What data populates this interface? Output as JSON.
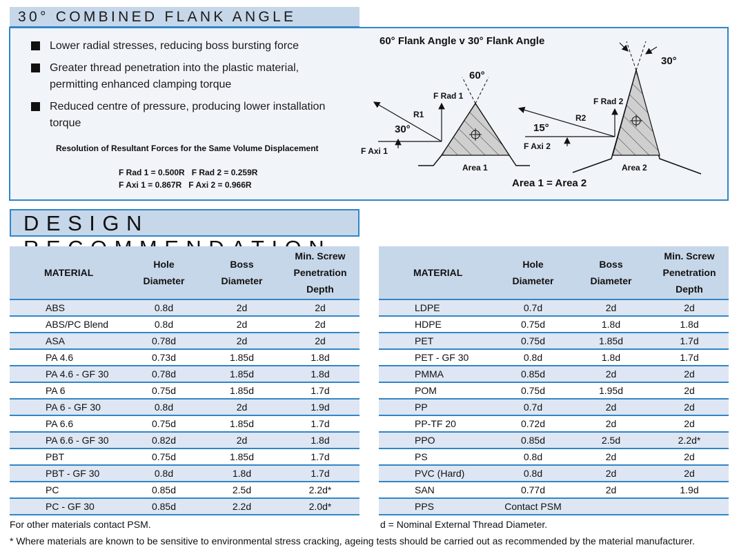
{
  "header": {
    "title": "30° COMBINED FLANK ANGLE"
  },
  "bullets": [
    [
      "Lower radial stresses, reducing boss bursting force"
    ],
    [
      "Greater thread penetration into the plastic material,",
      "permitting enhanced clamping torque"
    ],
    [
      "Reduced centre of pressure, producing lower installation",
      "torque"
    ]
  ],
  "resolution": {
    "title": "Resolution of Resultant Forces for the Same Volume Displacement",
    "line1": "F Rad 1 = 0.500R   F Rad 2 = 0.259R",
    "line2": "F Axi 1 = 0.867R   F Axi 2 = 0.966R"
  },
  "diagram": {
    "title": "60° Flank Angle v 30° Flank Angle",
    "angle_60": "60°",
    "angle_30_left": "30°",
    "angle_15": "15°",
    "angle_30_right": "30°",
    "f_rad_1": "F Rad 1",
    "f_rad_2": "F Rad 2",
    "r1": "R1",
    "r2": "R2",
    "f_axi_1": "F Axi 1",
    "f_axi_2": "F Axi 2",
    "area_1": "Area 1",
    "area_2": "Area  2",
    "equality": "Area 1 = Area 2"
  },
  "design_header": {
    "title": "DESIGN RECOMMENDATION"
  },
  "columns": {
    "material": "MATERIAL",
    "hole": [
      "Hole",
      "Diameter"
    ],
    "boss": [
      "Boss",
      "Diameter"
    ],
    "depth": [
      "Min. Screw",
      "Penetration",
      "Depth"
    ]
  },
  "table_left": [
    [
      "ABS",
      "0.8d",
      "2d",
      "2d"
    ],
    [
      "ABS/PC Blend",
      "0.8d",
      "2d",
      "2d"
    ],
    [
      "ASA",
      "0.78d",
      "2d",
      "2d"
    ],
    [
      "PA 4.6",
      "0.73d",
      "1.85d",
      "1.8d"
    ],
    [
      "PA 4.6 - GF 30",
      "0.78d",
      "1.85d",
      "1.8d"
    ],
    [
      "PA 6",
      "0.75d",
      "1.85d",
      "1.7d"
    ],
    [
      "PA 6 - GF 30",
      "0.8d",
      "2d",
      "1.9d"
    ],
    [
      "PA 6.6",
      "0.75d",
      "1.85d",
      "1.7d"
    ],
    [
      "PA 6.6 - GF 30",
      "0.82d",
      "2d",
      "1.8d"
    ],
    [
      "PBT",
      "0.75d",
      "1.85d",
      "1.7d"
    ],
    [
      "PBT - GF 30",
      "0.8d",
      "1.8d",
      "1.7d"
    ],
    [
      "PC",
      "0.85d",
      "2.5d",
      "2.2d*"
    ],
    [
      "PC - GF 30",
      "0.85d",
      "2.2d",
      "2.0d*"
    ]
  ],
  "table_right": [
    [
      "LDPE",
      "0.7d",
      "2d",
      "2d"
    ],
    [
      "HDPE",
      "0.75d",
      "1.8d",
      "1.8d"
    ],
    [
      "PET",
      "0.75d",
      "1.85d",
      "1.7d"
    ],
    [
      "PET - GF 30",
      "0.8d",
      "1.8d",
      "1.7d"
    ],
    [
      "PMMA",
      "0.85d",
      "2d",
      "2d"
    ],
    [
      "POM",
      "0.75d",
      "1.95d",
      "2d"
    ],
    [
      "PP",
      "0.7d",
      "2d",
      "2d"
    ],
    [
      "PP-TF 20",
      "0.72d",
      "2d",
      "2d"
    ],
    [
      "PPO",
      "0.85d",
      "2.5d",
      "2.2d*"
    ],
    [
      "PS",
      "0.8d",
      "2d",
      "2d"
    ],
    [
      "PVC (Hard)",
      "0.8d",
      "2d",
      "2d"
    ],
    [
      "SAN",
      "0.77d",
      "2d",
      "1.9d"
    ],
    [
      "PPS",
      "Contact PSM",
      "",
      ""
    ]
  ],
  "footer": {
    "note_left": "For other materials contact PSM.",
    "note_right": "d = Nominal External Thread Diameter.",
    "asterisk": "* Where materials are known to be sensitive to environmental stress cracking, ageing tests should be carried out as recommended by the material manufacturer."
  },
  "colors": {
    "accent_blue": "#2f86c7",
    "header_fill": "#c7d7ea",
    "row_alt": "#dde6f2"
  }
}
